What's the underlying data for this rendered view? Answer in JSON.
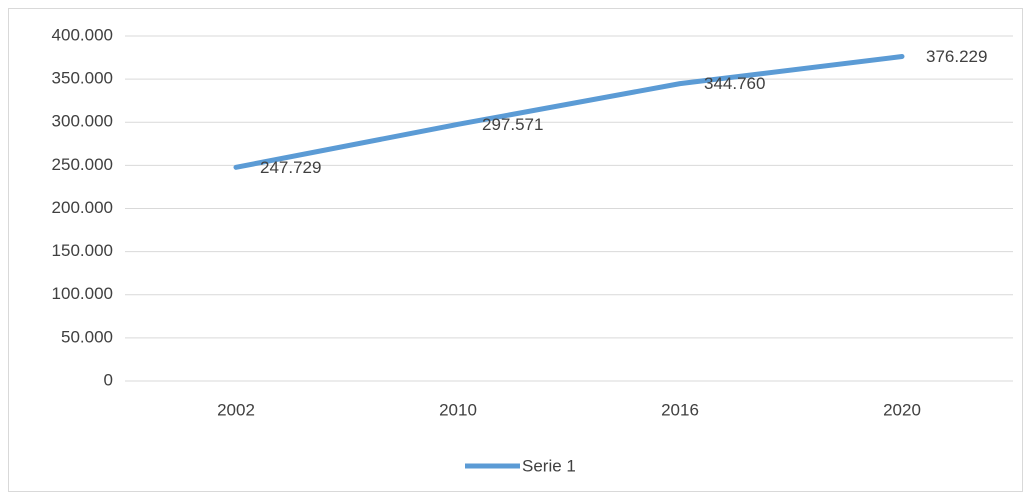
{
  "chart_data": {
    "type": "line",
    "categories": [
      "2002",
      "2010",
      "2016",
      "2020"
    ],
    "series": [
      {
        "name": "Serie 1",
        "color": "#5b9bd5",
        "values": [
          247729,
          297571,
          344760,
          376229
        ],
        "value_labels": [
          "247.729",
          "297.571",
          "344.760",
          "376.229"
        ]
      }
    ],
    "ylim": [
      0,
      400000
    ],
    "yticks": [
      0,
      {
        "value": 50000,
        "label": "50.000"
      },
      {
        "value": 100000,
        "label": "100.000"
      },
      {
        "value": 150000,
        "label": "150.000"
      },
      {
        "value": 200000,
        "label": "200.000"
      },
      {
        "value": 250000,
        "label": "250.000"
      },
      {
        "value": 300000,
        "label": "300.000"
      },
      {
        "value": 350000,
        "label": "350.000"
      },
      {
        "value": 400000,
        "label": "400.000"
      }
    ],
    "grid": true,
    "legend": "bottom"
  }
}
